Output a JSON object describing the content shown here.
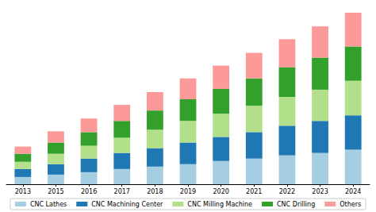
{
  "chart_data": {
    "type": "bar",
    "stacked": true,
    "grid": false,
    "legend": "bottom",
    "tick_labels": "x",
    "categories": [
      "2013",
      "2015",
      "2016",
      "2017",
      "2018",
      "2019",
      "2020",
      "2021",
      "2022",
      "2023",
      "2024"
    ],
    "ylim": [
      0,
      220
    ],
    "series": [
      {
        "name": "CNC Lathes",
        "color": "#a6cee3",
        "values": [
          9,
          12,
          15,
          19,
          22,
          25,
          29,
          32,
          36,
          39,
          43
        ]
      },
      {
        "name": "CNC Machining Center",
        "color": "#1f78b4",
        "values": [
          10,
          13,
          17,
          20,
          23,
          27,
          30,
          33,
          37,
          40,
          43
        ]
      },
      {
        "name": "CNC Milling Machine",
        "color": "#b2df8a",
        "values": [
          9,
          13,
          16,
          19,
          23,
          27,
          29,
          33,
          36,
          39,
          43
        ]
      },
      {
        "name": "CNC Drilling",
        "color": "#33a02c",
        "values": [
          10,
          14,
          17,
          21,
          24,
          27,
          31,
          34,
          37,
          40,
          43
        ]
      },
      {
        "name": "Others",
        "color": "#fb9a99",
        "values": [
          9,
          14,
          17,
          20,
          23,
          26,
          29,
          32,
          35,
          39,
          42
        ]
      }
    ]
  }
}
